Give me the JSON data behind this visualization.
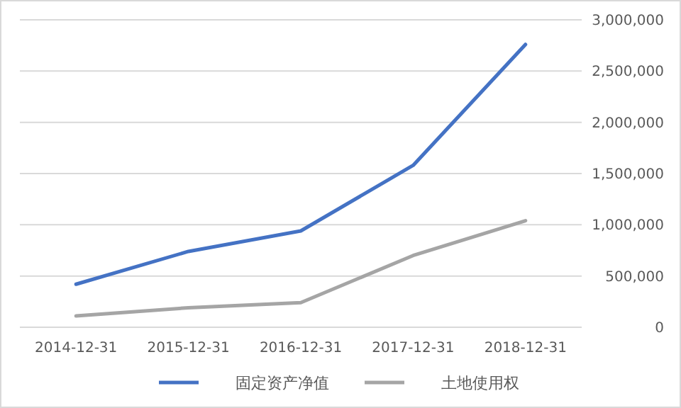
{
  "chart_data": {
    "type": "line",
    "categories": [
      "2014-12-31",
      "2015-12-31",
      "2016-12-31",
      "2017-12-31",
      "2018-12-31"
    ],
    "series": [
      {
        "name": "固定资产净值",
        "color": "#4472c4",
        "values": [
          420000,
          740000,
          940000,
          1580000,
          2760000
        ]
      },
      {
        "name": "土地使用权",
        "color": "#a5a5a5",
        "values": [
          110000,
          190000,
          240000,
          700000,
          1040000
        ]
      }
    ],
    "ylim": [
      0,
      3000000
    ],
    "yticks": [
      {
        "value": 0,
        "label": "0"
      },
      {
        "value": 500000,
        "label": "500,000"
      },
      {
        "value": 1000000,
        "label": "1,000,000"
      },
      {
        "value": 1500000,
        "label": "1,500,000"
      },
      {
        "value": 2000000,
        "label": "2,000,000"
      },
      {
        "value": 2500000,
        "label": "2,500,000"
      },
      {
        "value": 3000000,
        "label": "3,000,000"
      }
    ],
    "grid": "y",
    "legend": "bottom",
    "marker": "none",
    "line_style": "solid"
  }
}
